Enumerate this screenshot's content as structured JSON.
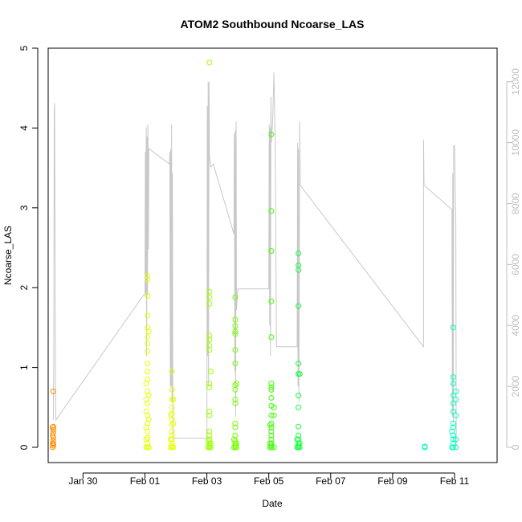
{
  "chart_data": {
    "type": "scatter",
    "title": "ATOM2 Southbound Ncoarse_LAS",
    "xlabel": "Date",
    "ylabel": "Ncoarse_LAS",
    "x_ticks": [
      "Jan 30",
      "Feb 01",
      "Feb 03",
      "Feb 05",
      "Feb 07",
      "Feb 09",
      "Feb 11"
    ],
    "xlim": [
      "2023-01-28T21:00",
      "2023-02-12T09:00"
    ],
    "ylim": [
      0,
      5
    ],
    "y_ticks": [
      "0",
      "1",
      "2",
      "3",
      "4",
      "5"
    ],
    "y2_ticks": [
      "0",
      "2000",
      "4000",
      "6000",
      "8000",
      "10000",
      "12000"
    ],
    "y2lim": [
      0,
      13100
    ],
    "grid": false,
    "legend": "none",
    "colors": {
      "secondary_line": "#c8c8c8",
      "right_axis": "#bdbdbd"
    },
    "series": [
      {
        "color": "#ff8c00",
        "points": [
          [
            "2023-01-29T01:00",
            0.7
          ],
          [
            "2023-01-29T01:00",
            0.26
          ],
          [
            "2023-01-29T01:00",
            0.22
          ],
          [
            "2023-01-29T01:00",
            0.18
          ],
          [
            "2023-01-29T01:00",
            0.12
          ],
          [
            "2023-01-29T01:00",
            0.08
          ],
          [
            "2023-01-29T01:00",
            0.04
          ],
          [
            "2023-01-29T01:00",
            0.02
          ],
          [
            "2023-01-29T00:30",
            0.25
          ],
          [
            "2023-01-29T00:30",
            0.15
          ],
          [
            "2023-01-29T00:30",
            0.05
          ],
          [
            "2023-01-29T00:30",
            0.0
          ]
        ]
      },
      {
        "color": "#e6ff00",
        "points": [
          [
            "2023-02-01T02:00",
            2.15
          ],
          [
            "2023-02-01T02:00",
            2.1
          ],
          [
            "2023-02-01T02:00",
            1.9
          ],
          [
            "2023-02-01T02:00",
            1.65
          ],
          [
            "2023-02-01T02:00",
            1.5
          ],
          [
            "2023-02-01T02:00",
            1.38
          ],
          [
            "2023-02-01T02:00",
            1.3
          ],
          [
            "2023-02-01T02:00",
            1.2
          ],
          [
            "2023-02-01T02:00",
            1.05
          ],
          [
            "2023-02-01T02:00",
            0.95
          ],
          [
            "2023-02-01T02:00",
            0.85
          ],
          [
            "2023-02-01T02:00",
            0.7
          ],
          [
            "2023-02-01T02:00",
            0.55
          ],
          [
            "2023-02-01T02:00",
            0.4
          ],
          [
            "2023-02-01T02:00",
            0.3
          ],
          [
            "2023-02-01T02:00",
            0.2
          ],
          [
            "2023-02-01T02:00",
            0.12
          ],
          [
            "2023-02-01T02:00",
            0.05
          ],
          [
            "2023-02-01T02:00",
            0.0
          ],
          [
            "2023-02-01T01:00",
            0.8
          ],
          [
            "2023-02-01T01:00",
            0.6
          ],
          [
            "2023-02-01T01:00",
            0.45
          ],
          [
            "2023-02-01T01:00",
            0.25
          ],
          [
            "2023-02-01T01:00",
            0.1
          ],
          [
            "2023-02-01T01:00",
            0.0
          ],
          [
            "2023-02-01T03:00",
            1.45
          ],
          [
            "2023-02-01T03:00",
            0.65
          ],
          [
            "2023-02-01T03:00",
            0.35
          ],
          [
            "2023-02-01T03:00",
            0.0
          ],
          [
            "2023-02-01T21:00",
            0.95
          ],
          [
            "2023-02-01T21:00",
            0.72
          ],
          [
            "2023-02-01T21:00",
            0.6
          ],
          [
            "2023-02-01T21:00",
            0.5
          ],
          [
            "2023-02-01T21:00",
            0.42
          ],
          [
            "2023-02-01T21:00",
            0.35
          ],
          [
            "2023-02-01T21:00",
            0.28
          ],
          [
            "2023-02-01T21:00",
            0.2
          ],
          [
            "2023-02-01T21:00",
            0.15
          ],
          [
            "2023-02-01T21:00",
            0.1
          ],
          [
            "2023-02-01T21:00",
            0.05
          ],
          [
            "2023-02-01T21:00",
            0.02
          ],
          [
            "2023-02-01T21:00",
            0.0
          ],
          [
            "2023-02-01T20:00",
            0.4
          ],
          [
            "2023-02-01T20:00",
            0.1
          ],
          [
            "2023-02-01T20:00",
            0.0
          ],
          [
            "2023-02-01T22:00",
            0.6
          ],
          [
            "2023-02-01T22:00",
            0.3
          ],
          [
            "2023-02-01T22:00",
            0.0
          ]
        ]
      },
      {
        "color": "#9cff00",
        "points": [
          [
            "2023-02-03T02:00",
            4.82
          ],
          [
            "2023-02-03T02:00",
            1.95
          ],
          [
            "2023-02-03T02:00",
            1.88
          ],
          [
            "2023-02-03T02:00",
            1.8
          ],
          [
            "2023-02-03T02:00",
            1.4
          ],
          [
            "2023-02-03T02:00",
            1.35
          ],
          [
            "2023-02-03T02:00",
            1.28
          ],
          [
            "2023-02-03T02:00",
            1.22
          ],
          [
            "2023-02-03T02:00",
            0.8
          ],
          [
            "2023-02-03T02:00",
            0.75
          ],
          [
            "2023-02-03T02:00",
            0.45
          ],
          [
            "2023-02-03T02:00",
            0.4
          ],
          [
            "2023-02-03T02:00",
            0.2
          ],
          [
            "2023-02-03T02:00",
            0.15
          ],
          [
            "2023-02-03T02:00",
            0.1
          ],
          [
            "2023-02-03T02:00",
            0.05
          ],
          [
            "2023-02-03T02:00",
            0.02
          ],
          [
            "2023-02-03T02:00",
            0.0
          ],
          [
            "2023-02-03T01:00",
            0.08
          ],
          [
            "2023-02-03T01:00",
            0.0
          ],
          [
            "2023-02-03T03:00",
            0.95
          ],
          [
            "2023-02-03T03:00",
            0.05
          ],
          [
            "2023-02-03T03:00",
            0.0
          ]
        ]
      },
      {
        "color": "#73ff00",
        "points": [
          [
            "2023-02-03T22:00",
            1.88
          ],
          [
            "2023-02-03T22:00",
            1.6
          ],
          [
            "2023-02-03T22:00",
            1.52
          ],
          [
            "2023-02-03T22:00",
            1.45
          ],
          [
            "2023-02-03T22:00",
            1.42
          ],
          [
            "2023-02-03T22:00",
            1.22
          ],
          [
            "2023-02-03T22:00",
            1.05
          ],
          [
            "2023-02-03T22:00",
            0.78
          ],
          [
            "2023-02-03T22:00",
            0.72
          ],
          [
            "2023-02-03T22:00",
            0.6
          ],
          [
            "2023-02-03T22:00",
            0.55
          ],
          [
            "2023-02-03T22:00",
            0.3
          ],
          [
            "2023-02-03T22:00",
            0.25
          ],
          [
            "2023-02-03T22:00",
            0.15
          ],
          [
            "2023-02-03T22:00",
            0.08
          ],
          [
            "2023-02-03T22:00",
            0.05
          ],
          [
            "2023-02-03T22:00",
            0.02
          ],
          [
            "2023-02-03T22:00",
            0.0
          ],
          [
            "2023-02-03T21:00",
            0.1
          ],
          [
            "2023-02-03T21:00",
            0.0
          ],
          [
            "2023-02-03T23:00",
            0.8
          ],
          [
            "2023-02-03T23:00",
            0.05
          ],
          [
            "2023-02-03T23:00",
            0.0
          ]
        ]
      },
      {
        "color": "#3dff00",
        "points": [
          [
            "2023-02-05T02:00",
            3.92
          ],
          [
            "2023-02-05T02:00",
            2.96
          ],
          [
            "2023-02-05T02:00",
            2.46
          ],
          [
            "2023-02-05T02:00",
            1.83
          ],
          [
            "2023-02-05T02:00",
            1.38
          ],
          [
            "2023-02-05T02:00",
            0.8
          ],
          [
            "2023-02-05T02:00",
            0.75
          ],
          [
            "2023-02-05T02:00",
            0.72
          ],
          [
            "2023-02-05T02:00",
            0.62
          ],
          [
            "2023-02-05T02:00",
            0.52
          ],
          [
            "2023-02-05T02:00",
            0.4
          ],
          [
            "2023-02-05T02:00",
            0.3
          ],
          [
            "2023-02-05T02:00",
            0.25
          ],
          [
            "2023-02-05T02:00",
            0.2
          ],
          [
            "2023-02-05T02:00",
            0.15
          ],
          [
            "2023-02-05T02:00",
            0.1
          ],
          [
            "2023-02-05T02:00",
            0.05
          ],
          [
            "2023-02-05T02:00",
            0.02
          ],
          [
            "2023-02-05T02:00",
            0.0
          ],
          [
            "2023-02-05T01:00",
            0.28
          ],
          [
            "2023-02-05T01:00",
            0.05
          ],
          [
            "2023-02-05T01:00",
            0.0
          ],
          [
            "2023-02-05T04:00",
            0.5
          ],
          [
            "2023-02-05T04:00",
            0.4
          ],
          [
            "2023-02-05T04:00",
            0.0
          ]
        ]
      },
      {
        "color": "#14ff3c",
        "points": [
          [
            "2023-02-05T23:00",
            2.43
          ],
          [
            "2023-02-05T23:00",
            2.28
          ],
          [
            "2023-02-05T23:00",
            2.22
          ],
          [
            "2023-02-05T23:00",
            1.77
          ],
          [
            "2023-02-05T23:00",
            1.05
          ],
          [
            "2023-02-05T23:00",
            0.92
          ],
          [
            "2023-02-05T23:00",
            0.65
          ],
          [
            "2023-02-05T23:00",
            0.5
          ],
          [
            "2023-02-05T23:00",
            0.26
          ],
          [
            "2023-02-05T23:00",
            0.15
          ],
          [
            "2023-02-05T23:00",
            0.1
          ],
          [
            "2023-02-05T23:00",
            0.05
          ],
          [
            "2023-02-05T23:00",
            0.02
          ],
          [
            "2023-02-05T23:00",
            0.0
          ],
          [
            "2023-02-05T22:00",
            0.1
          ],
          [
            "2023-02-05T22:00",
            0.0
          ],
          [
            "2023-02-06T00:00",
            0.92
          ],
          [
            "2023-02-06T00:00",
            0.05
          ],
          [
            "2023-02-06T00:00",
            0.0
          ]
        ]
      },
      {
        "color": "#00ffc0",
        "points": [
          [
            "2023-02-10T01:00",
            0.0
          ],
          [
            "2023-02-10T01:00",
            0.01
          ],
          [
            "2023-02-10T23:00",
            1.5
          ],
          [
            "2023-02-10T23:00",
            0.88
          ],
          [
            "2023-02-10T23:00",
            0.8
          ],
          [
            "2023-02-10T23:00",
            0.65
          ],
          [
            "2023-02-10T23:00",
            0.55
          ],
          [
            "2023-02-10T23:00",
            0.45
          ],
          [
            "2023-02-10T23:00",
            0.3
          ],
          [
            "2023-02-10T23:00",
            0.25
          ],
          [
            "2023-02-10T23:00",
            0.15
          ],
          [
            "2023-02-10T23:00",
            0.1
          ],
          [
            "2023-02-10T23:00",
            0.05
          ],
          [
            "2023-02-10T23:00",
            0.0
          ],
          [
            "2023-02-10T22:00",
            0.2
          ],
          [
            "2023-02-10T22:00",
            0.0
          ],
          [
            "2023-02-11T01:00",
            0.7
          ],
          [
            "2023-02-11T01:00",
            0.6
          ],
          [
            "2023-02-11T01:00",
            0.4
          ],
          [
            "2023-02-11T01:00",
            0.1
          ],
          [
            "2023-02-11T01:00",
            0.0
          ]
        ]
      }
    ],
    "secondary_line": [
      [
        "2023-01-29T01:00",
        900
      ],
      [
        "2023-01-29T01:20",
        3000
      ],
      [
        "2023-01-29T01:40",
        11000
      ],
      [
        "2023-01-29T02:00",
        11300
      ],
      [
        "2023-01-29T02:20",
        6000
      ],
      [
        "2023-01-29T02:40",
        2000
      ],
      [
        "2023-01-29T03:00",
        900
      ],
      [
        "2023-01-31T23:00",
        5000
      ],
      [
        "2023-02-01T00:00",
        5000
      ],
      [
        "2023-02-01T00:20",
        9700
      ],
      [
        "2023-02-01T00:40",
        5000
      ],
      [
        "2023-02-01T01:00",
        10500
      ],
      [
        "2023-02-01T01:20",
        3000
      ],
      [
        "2023-02-01T01:40",
        10200
      ],
      [
        "2023-02-01T02:00",
        5000
      ],
      [
        "2023-02-01T02:20",
        10600
      ],
      [
        "2023-02-01T02:40",
        6500
      ],
      [
        "2023-02-01T03:00",
        9800
      ],
      [
        "2023-02-01T19:00",
        9300
      ],
      [
        "2023-02-01T19:20",
        9700
      ],
      [
        "2023-02-01T19:40",
        2000
      ],
      [
        "2023-02-01T20:00",
        9800
      ],
      [
        "2023-02-01T20:20",
        2000
      ],
      [
        "2023-02-01T20:40",
        10600
      ],
      [
        "2023-02-01T21:00",
        1500
      ],
      [
        "2023-02-01T21:20",
        9000
      ],
      [
        "2023-02-01T21:40",
        300
      ],
      [
        "2023-02-02T00:00",
        300
      ],
      [
        "2023-02-03T00:00",
        300
      ],
      [
        "2023-02-03T00:20",
        11200
      ],
      [
        "2023-02-03T00:40",
        3000
      ],
      [
        "2023-02-03T01:00",
        12000
      ],
      [
        "2023-02-03T01:20",
        2000
      ],
      [
        "2023-02-03T01:40",
        12000
      ],
      [
        "2023-02-03T02:00",
        9600
      ],
      [
        "2023-02-03T03:00",
        9200
      ],
      [
        "2023-02-03T05:00",
        9300
      ],
      [
        "2023-02-03T21:00",
        7000
      ],
      [
        "2023-02-03T21:20",
        10300
      ],
      [
        "2023-02-03T21:40",
        2500
      ],
      [
        "2023-02-03T22:00",
        10400
      ],
      [
        "2023-02-03T22:20",
        1000
      ],
      [
        "2023-02-03T22:40",
        10700
      ],
      [
        "2023-02-03T23:00",
        4500
      ],
      [
        "2023-02-04T00:00",
        5200
      ],
      [
        "2023-02-05T00:00",
        5200
      ],
      [
        "2023-02-05T00:20",
        10600
      ],
      [
        "2023-02-05T00:40",
        4000
      ],
      [
        "2023-02-05T01:00",
        10500
      ],
      [
        "2023-02-05T01:20",
        3000
      ],
      [
        "2023-02-05T01:40",
        11500
      ],
      [
        "2023-02-05T02:00",
        10000
      ],
      [
        "2023-02-05T03:00",
        10700
      ],
      [
        "2023-02-05T04:00",
        12300
      ],
      [
        "2023-02-05T05:00",
        10000
      ],
      [
        "2023-02-05T06:00",
        3300
      ],
      [
        "2023-02-05T22:00",
        3300
      ],
      [
        "2023-02-05T22:20",
        10000
      ],
      [
        "2023-02-05T22:40",
        2000
      ],
      [
        "2023-02-05T23:00",
        9800
      ],
      [
        "2023-02-05T23:20",
        1500
      ],
      [
        "2023-02-06T00:00",
        10700
      ],
      [
        "2023-02-06T00:20",
        8600
      ],
      [
        "2023-02-10T00:00",
        3300
      ],
      [
        "2023-02-10T00:00",
        10100
      ],
      [
        "2023-02-10T00:20",
        8600
      ],
      [
        "2023-02-10T22:00",
        7800
      ],
      [
        "2023-02-10T22:20",
        1000
      ],
      [
        "2023-02-10T22:40",
        9000
      ],
      [
        "2023-02-10T23:00",
        800
      ],
      [
        "2023-02-10T23:20",
        9900
      ],
      [
        "2023-02-11T00:00",
        9900
      ],
      [
        "2023-02-11T01:00",
        7300
      ],
      [
        "2023-02-11T01:20",
        0
      ]
    ]
  }
}
